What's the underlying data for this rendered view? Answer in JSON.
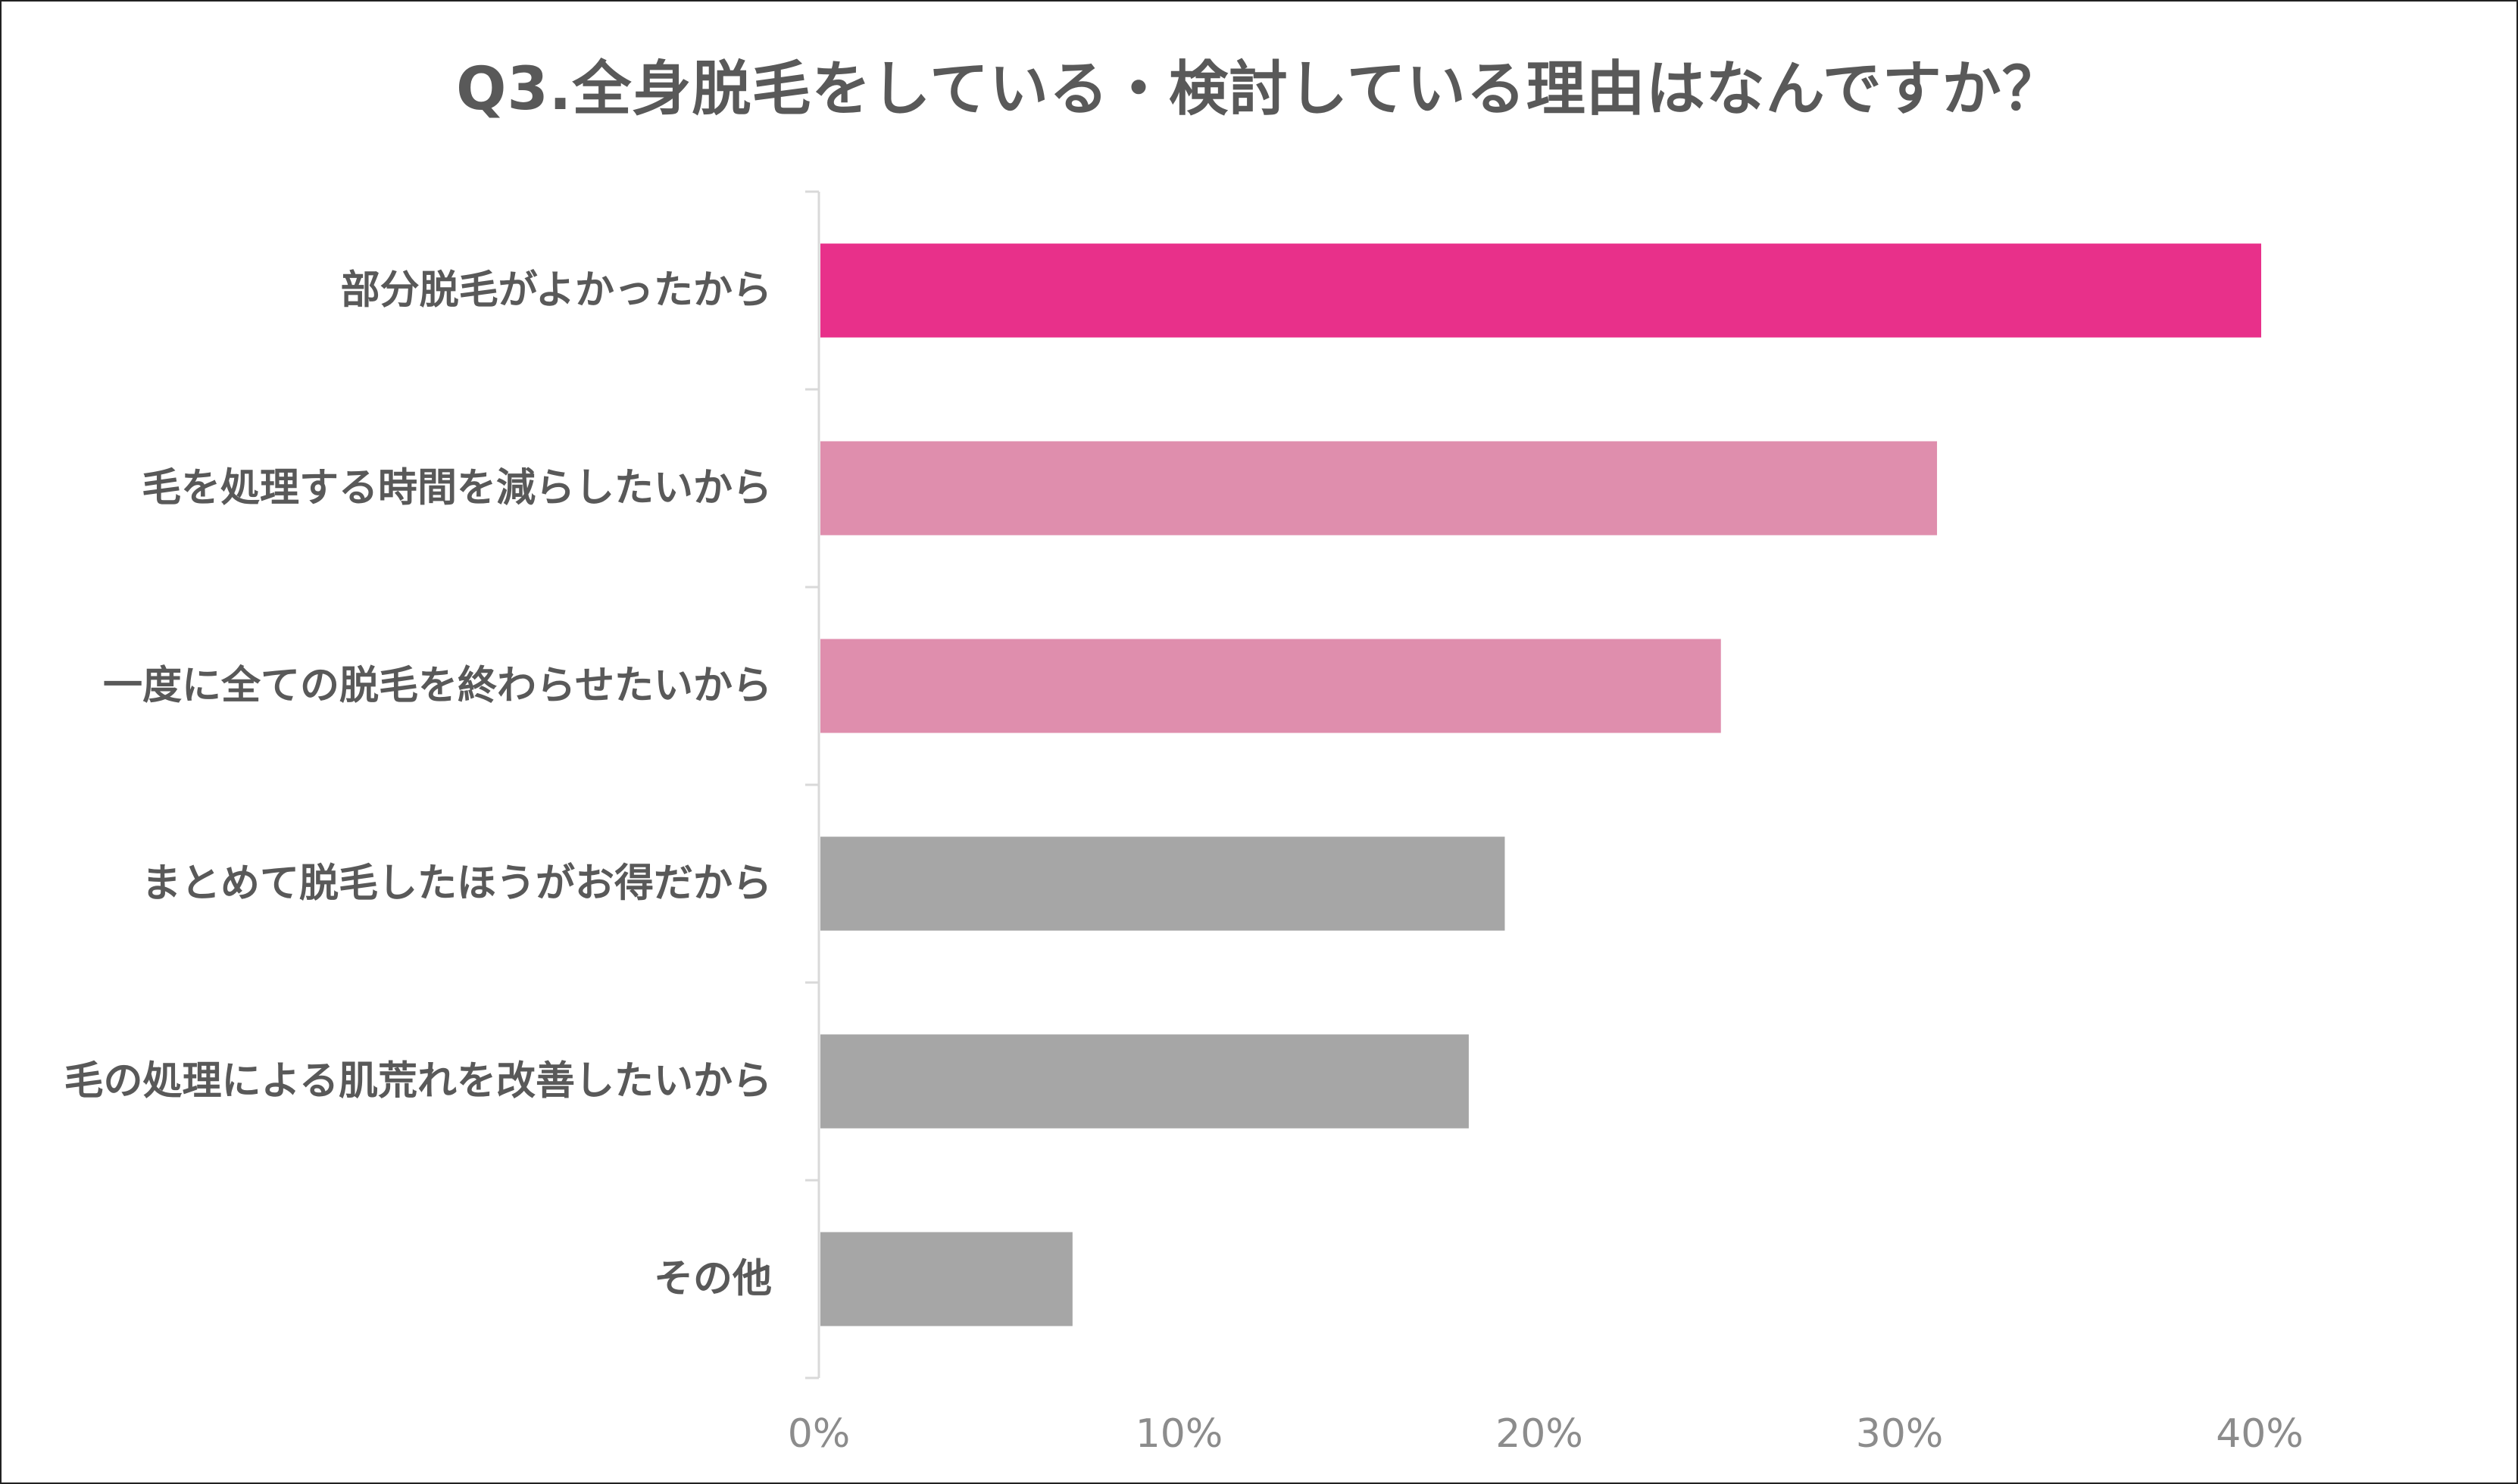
{
  "colors": {
    "highlight": "#E8308A",
    "secondary": "#DF8EAD",
    "neutral": "#A6A6A6",
    "text": "#595959",
    "tick_text": "#8C8C8C",
    "axis": "#D9D9D9"
  },
  "chart_data": {
    "type": "bar",
    "orientation": "horizontal",
    "title": "Q3.全身脱毛をしている・検討している理由はなんですか？",
    "categories": [
      "部分脱毛がよかったから",
      "毛を処理する時間を減らしたいから",
      "一度に全ての脱毛を終わらせたいから",
      "まとめて脱毛したほうがお得だから",
      "毛の処理による肌荒れを改善したいから",
      "その他"
    ],
    "values": [
      40,
      31,
      25,
      19,
      18,
      7
    ],
    "bar_colors": [
      "#E8308A",
      "#DF8EAD",
      "#DF8EAD",
      "#A6A6A6",
      "#A6A6A6",
      "#A6A6A6"
    ],
    "xlim": [
      0,
      45
    ],
    "xticks": [
      0,
      10,
      20,
      30,
      40
    ],
    "xtick_labels": [
      "0%",
      "10%",
      "20%",
      "30%",
      "40%"
    ],
    "unit": "%",
    "grid": false,
    "legend": "none"
  }
}
